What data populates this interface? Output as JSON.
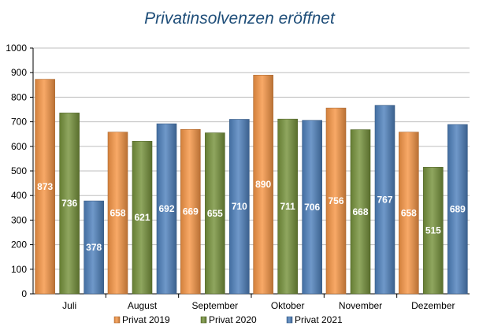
{
  "chart_data": {
    "type": "bar",
    "title": "Privatinsolvenzen eröffnet",
    "xlabel": "",
    "ylabel": "",
    "ylim": [
      0,
      1000
    ],
    "ytick_step": 100,
    "yticks": [
      "0",
      "100",
      "200",
      "300",
      "400",
      "500",
      "600",
      "700",
      "800",
      "900",
      "1000"
    ],
    "grid": true,
    "legend_position": "bottom",
    "categories": [
      "Juli",
      "August",
      "September",
      "Oktober",
      "November",
      "Dezember"
    ],
    "series": [
      {
        "name": "Privat 2019",
        "color": "#f79646",
        "values": [
          873,
          658,
          669,
          890,
          756,
          658
        ]
      },
      {
        "name": "Privat 2020",
        "color": "#77933c",
        "values": [
          736,
          621,
          655,
          711,
          668,
          515
        ]
      },
      {
        "name": "Privat 2021",
        "color": "#4f81bd",
        "values": [
          378,
          692,
          710,
          706,
          767,
          689
        ]
      }
    ]
  }
}
